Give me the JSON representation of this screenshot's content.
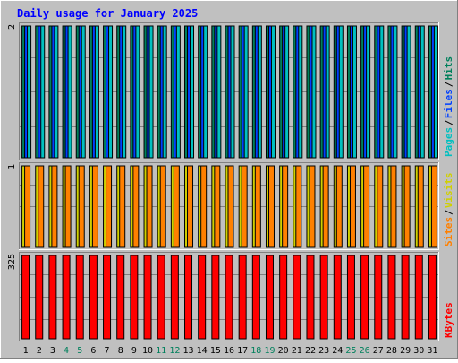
{
  "chart_data": {
    "type": "bar",
    "title": "Daily usage for January 2025",
    "categories": [
      "1",
      "2",
      "3",
      "4",
      "5",
      "6",
      "7",
      "8",
      "9",
      "10",
      "11",
      "12",
      "13",
      "14",
      "15",
      "16",
      "17",
      "18",
      "19",
      "20",
      "21",
      "22",
      "23",
      "24",
      "25",
      "26",
      "27",
      "28",
      "29",
      "30",
      "31"
    ],
    "weekend_days": [
      "4",
      "5",
      "11",
      "12",
      "18",
      "19",
      "25",
      "26"
    ],
    "panels": [
      {
        "id": "pages_files_hits",
        "max_label": "2",
        "legend": [
          "Pages",
          "/",
          "Files",
          "/",
          "Hits"
        ],
        "series": [
          {
            "name": "Hits",
            "values": [
              2,
              2,
              2,
              2,
              2,
              2,
              2,
              2,
              2,
              2,
              2,
              2,
              2,
              2,
              2,
              2,
              2,
              2,
              2,
              2,
              2,
              2,
              2,
              2,
              2,
              2,
              2,
              2,
              2,
              2,
              2
            ]
          },
          {
            "name": "Files",
            "values": [
              2,
              2,
              2,
              2,
              2,
              2,
              2,
              2,
              2,
              2,
              2,
              2,
              2,
              2,
              2,
              2,
              2,
              2,
              2,
              2,
              2,
              2,
              2,
              2,
              2,
              2,
              2,
              2,
              2,
              2,
              2
            ]
          },
          {
            "name": "Pages",
            "values": [
              2,
              2,
              2,
              2,
              2,
              2,
              2,
              2,
              2,
              2,
              2,
              2,
              2,
              2,
              2,
              2,
              2,
              2,
              2,
              2,
              2,
              2,
              2,
              2,
              2,
              2,
              2,
              2,
              2,
              2,
              2
            ]
          }
        ]
      },
      {
        "id": "sites_visits",
        "max_label": "1",
        "legend": [
          "Sites",
          "/",
          "Visits"
        ],
        "series": [
          {
            "name": "Visits",
            "values": [
              1,
              1,
              1,
              1,
              1,
              1,
              1,
              1,
              1,
              1,
              1,
              1,
              1,
              1,
              1,
              1,
              1,
              1,
              1,
              1,
              1,
              1,
              1,
              1,
              1,
              1,
              1,
              1,
              1,
              1,
              1
            ]
          },
          {
            "name": "Sites",
            "values": [
              1,
              1,
              1,
              1,
              1,
              1,
              1,
              1,
              1,
              1,
              1,
              1,
              1,
              1,
              1,
              1,
              1,
              1,
              1,
              1,
              1,
              1,
              1,
              1,
              1,
              1,
              1,
              1,
              1,
              1,
              1
            ]
          }
        ]
      },
      {
        "id": "kbytes",
        "max_label": "325",
        "legend": [
          "KBytes"
        ],
        "series": [
          {
            "name": "KBytes",
            "values": [
              325,
              325,
              325,
              325,
              325,
              325,
              325,
              325,
              325,
              325,
              325,
              325,
              325,
              325,
              325,
              325,
              325,
              325,
              325,
              325,
              325,
              325,
              325,
              325,
              325,
              325,
              325,
              325,
              325,
              325,
              325
            ]
          }
        ]
      }
    ],
    "grid": true
  },
  "colors": {
    "background": "#c0c0c0",
    "panel": "#c0c0c0",
    "title": "#0000ff",
    "hits": "#00805c",
    "files": "#0040ff",
    "pages": "#00c0c0",
    "visits": "#d0d000",
    "sites": "#ff8000",
    "kbytes": "#ff0000",
    "weekday_label": "#000000",
    "weekend_label": "#00805c",
    "slash": "#000000"
  }
}
